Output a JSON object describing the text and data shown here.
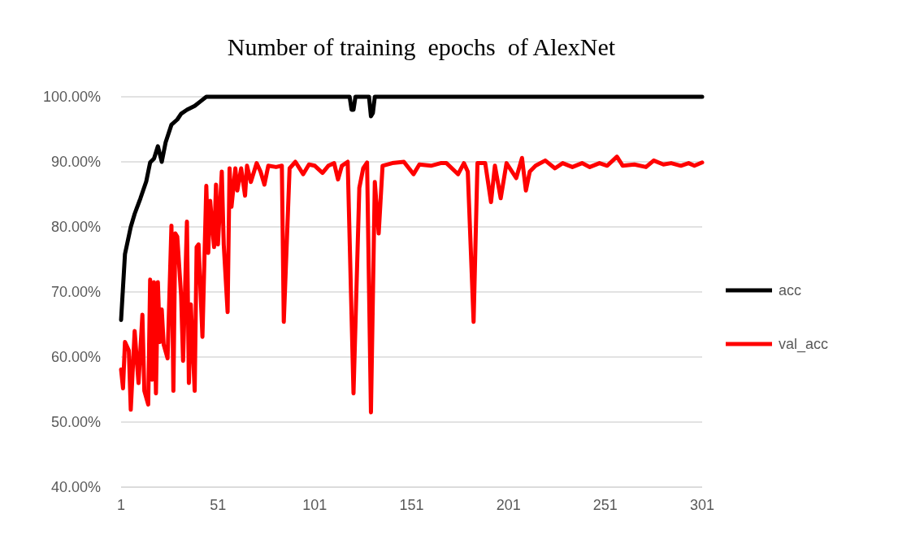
{
  "chart_data": {
    "type": "line",
    "title": "Number of training  epochs  of AlexNet",
    "xlim": [
      1,
      301
    ],
    "xticks": [
      1,
      51,
      101,
      151,
      201,
      251,
      301
    ],
    "ylim": [
      40,
      100
    ],
    "yticks": [
      {
        "value": 40,
        "label": "40.00%"
      },
      {
        "value": 50,
        "label": "50.00%"
      },
      {
        "value": 60,
        "label": "60.00%"
      },
      {
        "value": 70,
        "label": "70.00%"
      },
      {
        "value": 80,
        "label": "80.00%"
      },
      {
        "value": 90,
        "label": "90.00%"
      },
      {
        "value": 100,
        "label": "100.00%"
      }
    ],
    "grid": "y",
    "legend": "right",
    "marker": "none",
    "line_style": "solid",
    "series": [
      {
        "name": "acc",
        "color": "#000000",
        "x": [
          1,
          3,
          6,
          8,
          11,
          14,
          16,
          18,
          20,
          22,
          24,
          27,
          30,
          32,
          35,
          39,
          42,
          45,
          119,
          120,
          121,
          122,
          129,
          130,
          131,
          132,
          301
        ],
        "values": [
          65.7,
          75.8,
          80,
          82,
          84.4,
          87,
          89.9,
          90.5,
          92.4,
          90,
          93,
          95.7,
          96.5,
          97.4,
          98,
          98.6,
          99.3,
          100,
          100,
          98,
          98,
          100,
          100,
          97,
          97.5,
          100,
          100
        ]
      },
      {
        "name": "val_acc",
        "color": "#ff0000",
        "x": [
          1,
          2,
          3,
          5,
          6,
          8,
          10,
          12,
          13,
          15,
          16,
          17,
          18,
          19,
          20,
          21,
          22,
          23,
          25,
          27,
          28,
          29,
          30,
          32,
          33,
          35,
          36,
          37,
          39,
          40,
          41,
          43,
          45,
          46,
          47,
          49,
          50,
          51,
          53,
          54,
          56,
          57,
          58,
          60,
          61,
          63,
          65,
          66,
          68,
          71,
          73,
          75,
          77,
          81,
          84,
          85,
          88,
          91,
          95,
          98,
          101,
          105,
          108,
          111,
          113,
          115,
          118,
          121,
          124,
          126,
          128,
          130,
          132,
          134,
          136,
          141,
          147,
          152,
          155,
          161,
          166,
          169,
          175,
          178,
          180,
          183,
          185,
          189,
          192,
          194,
          197,
          200,
          205,
          208,
          210,
          212,
          215,
          220,
          225,
          229,
          234,
          239,
          243,
          248,
          252,
          257,
          260,
          266,
          272,
          276,
          281,
          285,
          290,
          294,
          297,
          301
        ],
        "values": [
          58.1,
          55.2,
          62.3,
          61,
          51.9,
          64,
          56,
          66.5,
          54.8,
          52.7,
          71.9,
          56.5,
          71.5,
          54.4,
          71.5,
          62.3,
          67.3,
          61.9,
          59.8,
          80.2,
          54.8,
          79,
          78.5,
          69.4,
          59.4,
          80.8,
          56,
          68.1,
          54.8,
          76.9,
          77.3,
          63.1,
          86.3,
          76,
          84,
          76.9,
          86.5,
          77.3,
          88.5,
          77.3,
          66.9,
          89,
          83.1,
          89,
          85.6,
          89,
          84.8,
          89.4,
          86.9,
          89.8,
          88.5,
          86.5,
          89.4,
          89.2,
          89.4,
          65.4,
          89,
          90,
          88.1,
          89.6,
          89.4,
          88.3,
          89.4,
          89.8,
          87.3,
          89.4,
          90,
          54.4,
          86,
          89,
          89.9,
          51.5,
          86.9,
          79,
          89.4,
          89.8,
          90,
          88.1,
          89.6,
          89.4,
          89.8,
          89.8,
          88.1,
          89.8,
          88.5,
          65.4,
          89.8,
          89.8,
          83.8,
          89.4,
          84.4,
          89.8,
          87.5,
          90.6,
          85.6,
          88.5,
          89.4,
          90.2,
          89,
          89.8,
          89.2,
          89.8,
          89.2,
          89.8,
          89.4,
          90.8,
          89.4,
          89.6,
          89.2,
          90.2,
          89.6,
          89.8,
          89.4,
          89.8,
          89.4,
          89.9
        ]
      }
    ]
  }
}
